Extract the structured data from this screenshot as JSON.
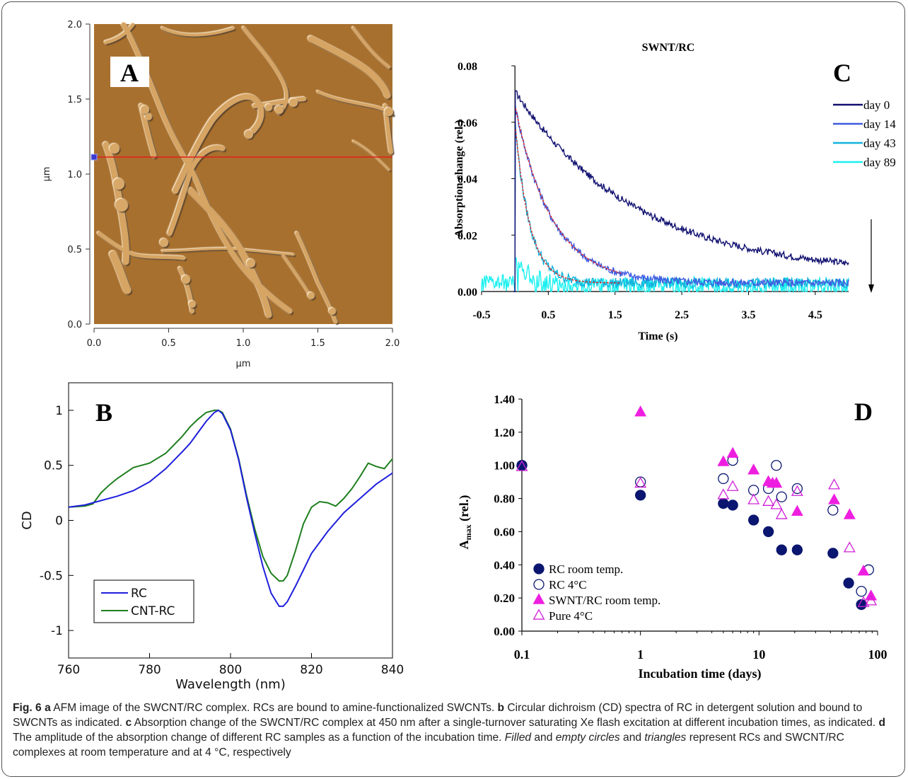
{
  "panels": {
    "A": {
      "letter": "A",
      "x_ticks": [
        "0.0",
        "0.5",
        "1.0",
        "1.5",
        "2.0"
      ],
      "y_ticks": [
        "0.0",
        "0.5",
        "1.0",
        "1.5",
        "2.0"
      ],
      "xlabel": "µm",
      "ylabel": "µm",
      "colors": {
        "background": "#a8702e",
        "scan_line": "#e0201a"
      }
    },
    "B": {
      "letter": "B"
    },
    "C": {
      "letter": "C"
    },
    "D": {
      "letter": "D"
    }
  },
  "chart_data": [
    {
      "panel": "B",
      "type": "line",
      "xlabel": "Wavelength (nm)",
      "ylabel": "CD",
      "xlim": [
        760,
        840
      ],
      "ylim": [
        -1.25,
        1.25
      ],
      "x_ticks": [
        760,
        780,
        800,
        820,
        840
      ],
      "y_ticks": [
        1,
        0.5,
        0,
        -0.5,
        -1
      ],
      "y_tick_labels": [
        "1",
        "0.5",
        "0",
        "-0.5",
        "-1"
      ],
      "legend_position": "bottom-left",
      "series": [
        {
          "name": "RC",
          "color": "#1f1fdc",
          "points": [
            [
              760,
              0.12
            ],
            [
              764,
              0.14
            ],
            [
              768,
              0.18
            ],
            [
              772,
              0.22
            ],
            [
              776,
              0.27
            ],
            [
              780,
              0.35
            ],
            [
              784,
              0.47
            ],
            [
              788,
              0.62
            ],
            [
              790,
              0.7
            ],
            [
              792,
              0.8
            ],
            [
              794,
              0.9
            ],
            [
              796,
              0.98
            ],
            [
              797,
              1.0
            ],
            [
              798,
              0.97
            ],
            [
              800,
              0.82
            ],
            [
              802,
              0.55
            ],
            [
              804,
              0.2
            ],
            [
              806,
              -0.12
            ],
            [
              808,
              -0.42
            ],
            [
              810,
              -0.66
            ],
            [
              812,
              -0.78
            ],
            [
              813,
              -0.78
            ],
            [
              814,
              -0.74
            ],
            [
              816,
              -0.6
            ],
            [
              818,
              -0.45
            ],
            [
              820,
              -0.3
            ],
            [
              824,
              -0.1
            ],
            [
              828,
              0.07
            ],
            [
              832,
              0.2
            ],
            [
              836,
              0.33
            ],
            [
              840,
              0.43
            ]
          ]
        },
        {
          "name": "CNT-RC",
          "color": "#1e7f1e",
          "points": [
            [
              760,
              0.12
            ],
            [
              764,
              0.13
            ],
            [
              766,
              0.15
            ],
            [
              768,
              0.25
            ],
            [
              770,
              0.32
            ],
            [
              772,
              0.38
            ],
            [
              776,
              0.48
            ],
            [
              780,
              0.52
            ],
            [
              784,
              0.61
            ],
            [
              788,
              0.76
            ],
            [
              790,
              0.85
            ],
            [
              792,
              0.92
            ],
            [
              794,
              0.98
            ],
            [
              796,
              1.0
            ],
            [
              797,
              1.0
            ],
            [
              798,
              0.98
            ],
            [
              800,
              0.83
            ],
            [
              802,
              0.56
            ],
            [
              804,
              0.22
            ],
            [
              806,
              -0.08
            ],
            [
              808,
              -0.33
            ],
            [
              810,
              -0.48
            ],
            [
              812,
              -0.55
            ],
            [
              813,
              -0.55
            ],
            [
              814,
              -0.5
            ],
            [
              816,
              -0.28
            ],
            [
              818,
              -0.03
            ],
            [
              820,
              0.12
            ],
            [
              822,
              0.17
            ],
            [
              824,
              0.16
            ],
            [
              826,
              0.13
            ],
            [
              828,
              0.2
            ],
            [
              830,
              0.29
            ],
            [
              832,
              0.4
            ],
            [
              834,
              0.52
            ],
            [
              836,
              0.49
            ],
            [
              838,
              0.47
            ],
            [
              840,
              0.56
            ]
          ]
        }
      ]
    },
    {
      "panel": "C",
      "type": "line",
      "title": "SWNT/RC",
      "xlabel": "Time (s)",
      "ylabel": "Absorption change (rel.)",
      "xlim": [
        -0.5,
        5.0
      ],
      "ylim": [
        0,
        0.08
      ],
      "x_ticks": [
        -0.5,
        0.5,
        1.5,
        2.5,
        3.5,
        4.5
      ],
      "x_tick_labels": [
        "-0.5",
        "0.5",
        "1.5",
        "2.5",
        "3.5",
        "4.5"
      ],
      "y_ticks": [
        0,
        0.02,
        0.04,
        0.06,
        0.08
      ],
      "y_tick_labels": [
        "0.00",
        "0.02",
        "0.04",
        "0.06",
        "0.08"
      ],
      "legend_position": "top-right",
      "fit_color": "#dd2222",
      "series": [
        {
          "name": "day 0",
          "color": "#101070",
          "amplitude": 0.071,
          "tau": 1.8,
          "offset": 0.006,
          "noise": 0.0012
        },
        {
          "name": "day 14",
          "color": "#3f5be0",
          "amplitude": 0.066,
          "tau": 0.55,
          "offset": 0.003,
          "noise": 0.0014
        },
        {
          "name": "day 43",
          "color": "#11b4dc",
          "amplitude": 0.06,
          "tau": 0.22,
          "offset": 0.003,
          "noise": 0.0018
        },
        {
          "name": "day 89",
          "color": "#1cf0f0",
          "amplitude": 0.012,
          "tau": 0.25,
          "offset": 0.002,
          "noise": 0.0032
        }
      ]
    },
    {
      "panel": "D",
      "type": "scatter",
      "xlabel": "Incubation time (days)",
      "ylabel": "A",
      "ylabel_sub": "max",
      "ylabel_tail": " (rel.)",
      "xscale": "log",
      "xlim": [
        0.1,
        100
      ],
      "ylim": [
        0,
        1.4
      ],
      "x_tick_labels": [
        "0.1",
        "1",
        "10",
        "100"
      ],
      "y_ticks": [
        0,
        0.2,
        0.4,
        0.6,
        0.8,
        1.0,
        1.2,
        1.4
      ],
      "y_tick_labels": [
        "0.00",
        "0.20",
        "0.40",
        "0.60",
        "0.80",
        "1.00",
        "1.20",
        "1.40"
      ],
      "legend_position": "bottom-left",
      "series": [
        {
          "name": "RC room temp.",
          "marker": "circle-filled",
          "color": "#0a1670",
          "points": [
            [
              0.1,
              1.0
            ],
            [
              1,
              0.82
            ],
            [
              5,
              0.77
            ],
            [
              6,
              0.76
            ],
            [
              9,
              0.67
            ],
            [
              12,
              0.6
            ],
            [
              15.5,
              0.49
            ],
            [
              21,
              0.49
            ],
            [
              42,
              0.47
            ],
            [
              57,
              0.29
            ],
            [
              73,
              0.16
            ]
          ]
        },
        {
          "name": "RC 4°C",
          "marker": "circle-open",
          "color": "#0a1670",
          "points": [
            [
              0.1,
              1.0
            ],
            [
              1,
              0.9
            ],
            [
              5,
              0.92
            ],
            [
              6,
              1.03
            ],
            [
              9,
              0.85
            ],
            [
              12,
              0.86
            ],
            [
              14,
              1.0
            ],
            [
              15.5,
              0.81
            ],
            [
              21,
              0.86
            ],
            [
              42,
              0.73
            ],
            [
              73,
              0.24
            ],
            [
              84,
              0.37
            ]
          ]
        },
        {
          "name": "SWNT/RC room temp.",
          "marker": "triangle-filled",
          "color": "#ee1ee0",
          "points": [
            [
              1,
              1.32
            ],
            [
              5,
              1.02
            ],
            [
              6,
              1.07
            ],
            [
              9,
              0.97
            ],
            [
              12,
              0.9
            ],
            [
              13,
              0.89
            ],
            [
              14,
              0.89
            ],
            [
              21,
              0.72
            ],
            [
              43,
              0.79
            ],
            [
              58,
              0.7
            ],
            [
              76,
              0.36
            ],
            [
              88,
              0.21
            ]
          ]
        },
        {
          "name": "Pure 4°C",
          "marker": "triangle-open",
          "color": "#d020d8",
          "points": [
            [
              0.1,
              0.99
            ],
            [
              1,
              0.89
            ],
            [
              5,
              0.82
            ],
            [
              6,
              0.87
            ],
            [
              9,
              0.79
            ],
            [
              12,
              0.78
            ],
            [
              14,
              0.76
            ],
            [
              15.5,
              0.7
            ],
            [
              21,
              0.84
            ],
            [
              43,
              0.88
            ],
            [
              58,
              0.5
            ],
            [
              76,
              0.17
            ],
            [
              88,
              0.18
            ]
          ]
        }
      ]
    }
  ],
  "caption": {
    "fig_label": "Fig. 6",
    "a_label": "a",
    "a_text": " AFM image of the SWCNT/RC complex. RCs are bound to amine-functionalized SWCNTs. ",
    "b_label": "b",
    "b_text": " Circular dichroism (CD) spectra of RC in detergent solution and bound to SWCNTs as indicated. ",
    "c_label": "c",
    "c_text": " Absorption change of the SWCNT/RC complex at 450 nm after a single-turnover saturating Xe flash excitation at different incubation times, as indicated. ",
    "d_label": "d",
    "d_text": " The amplitude of the absorption change of different RC samples as a function of the incubation time. ",
    "filled": "Filled",
    "and1": " and ",
    "empty_circles": "empty circles",
    "and2": " and ",
    "triangles": "triangles",
    "tail": " represent RCs and SWCNT/RC complexes at room temperature and at 4 °C, respectively"
  }
}
